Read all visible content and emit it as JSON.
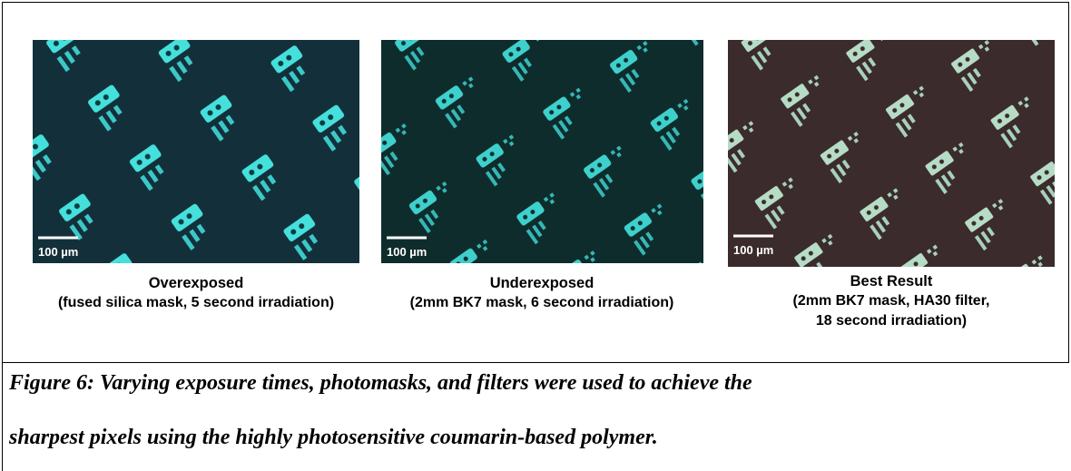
{
  "panels": [
    {
      "scale_label": "100 µm",
      "title": "Overexposed",
      "details": [
        "(fused silica mask, 5 second irradiation)"
      ]
    },
    {
      "scale_label": "100 µm",
      "title": "Underexposed",
      "details": [
        "(2mm BK7 mask, 6 second irradiation)"
      ]
    },
    {
      "scale_label": "100 µm",
      "title": "Best Result",
      "details": [
        "(2mm BK7 mask, HA30 filter,",
        "18 second irradiation)"
      ]
    }
  ],
  "caption": {
    "lines": [
      "Figure 6: Varying exposure times, photomasks, and filters were used to achieve the",
      "sharpest pixels using the highly photosensitive coumarin-based polymer."
    ]
  }
}
